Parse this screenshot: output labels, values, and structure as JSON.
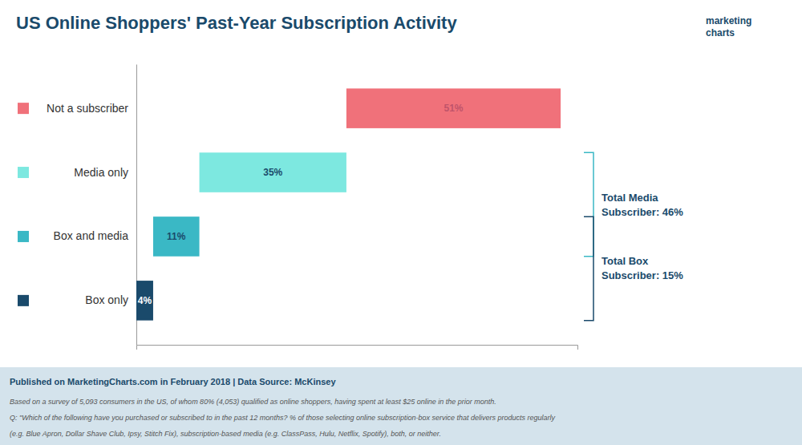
{
  "chart_data": {
    "type": "bar",
    "orientation": "horizontal",
    "stacked": true,
    "title": "US Online Shoppers' Past-Year Subscription Activity",
    "categories": [
      "Box only",
      "Box and media",
      "Media only",
      "Not a subscriber"
    ],
    "values": [
      4,
      11,
      35,
      51
    ],
    "value_labels": [
      "4%",
      "11%",
      "35%",
      "51%"
    ],
    "colors": [
      "#1a4a6b",
      "#3ab8c5",
      "#7de8e0",
      "#f0717a"
    ],
    "label_colors": [
      "#ffffff",
      "#1a4a6b",
      "#1a4a6b",
      "#c0546a"
    ],
    "data_labels": true,
    "xlim": [
      0,
      105
    ],
    "grid": false,
    "tick_labels": "y",
    "annotations": [
      {
        "text": [
          "Total Media",
          "Subscriber: 46%"
        ],
        "categories": [
          "Box and media",
          "Media only"
        ],
        "color": "#3ab8c5"
      },
      {
        "text": [
          "Total Box",
          "Subscriber: 15%"
        ],
        "categories": [
          "Box only",
          "Box and media"
        ],
        "color": "#1a4a6b"
      }
    ],
    "logo": [
      "marketing",
      "charts"
    ],
    "footnotes": [
      "Published on MarketingCharts.com in February 2018 | Data Source: McKinsey",
      "Based on a survey of 5,093 consumers in the US, of whom 80% (4,053) qualified as online shoppers, having spent at least $25 online in the prior month.",
      "Q: \"Which of the following have you purchased or subscribed to in the past 12 months? % of those selecting online subscription-box service that delivers products regularly",
      "(e.g. Blue Apron, Dollar Shave Club, Ipsy, Stitch Fix), subscription-based media (e.g. ClassPass, Hulu, Netflix, Spotify), both, or neither."
    ]
  }
}
